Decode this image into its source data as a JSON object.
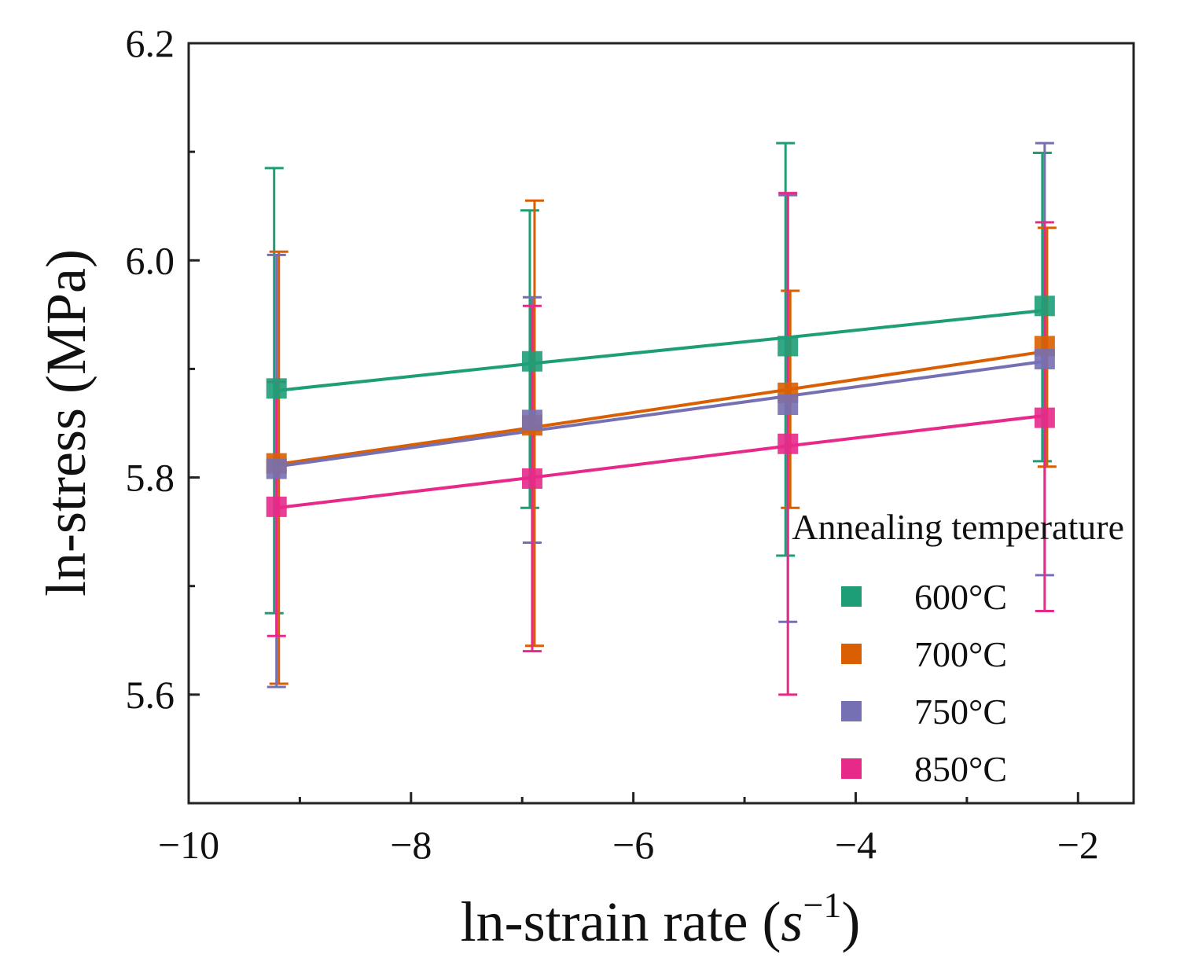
{
  "chart_data": {
    "type": "scatter",
    "title": "",
    "xlabel": {
      "main": "ln-strain rate (",
      "var": "s",
      "exp": "−1",
      "close": ")"
    },
    "ylabel": "ln-stress (MPa)",
    "xlim": [
      -10,
      -1.5
    ],
    "ylim": [
      5.5,
      6.2
    ],
    "xticks": [
      -10,
      -8,
      -6,
      -4,
      -2
    ],
    "xtick_labels": [
      "−10",
      "−8",
      "−6",
      "−4",
      "−2"
    ],
    "xminor": [
      -9,
      -7,
      -5,
      -3
    ],
    "yticks": [
      5.6,
      5.8,
      6.0,
      6.2
    ],
    "ytick_labels": [
      "5.6",
      "5.8",
      "6.0",
      "6.2"
    ],
    "yminor": [
      5.7,
      5.9,
      6.1
    ],
    "x": [
      -9.21,
      -6.91,
      -4.61,
      -2.3
    ],
    "legend": {
      "title": "Annealing temperature",
      "position": "bottom-right"
    },
    "series": [
      {
        "name": "600°C",
        "color": "#1e9e77",
        "values": [
          5.882,
          5.907,
          5.921,
          5.958
        ],
        "err_low": [
          5.675,
          5.772,
          5.728,
          5.815
        ],
        "err_high": [
          6.085,
          6.046,
          6.108,
          6.099
        ],
        "fit": [
          5.88,
          5.905,
          5.929,
          5.954
        ]
      },
      {
        "name": "700°C",
        "color": "#d95f02",
        "values": [
          5.813,
          5.848,
          5.878,
          5.921
        ],
        "err_low": [
          5.61,
          5.645,
          5.772,
          5.81
        ],
        "err_high": [
          6.008,
          6.055,
          5.972,
          6.03
        ],
        "fit": [
          5.812,
          5.846,
          5.881,
          5.916
        ]
      },
      {
        "name": "750°C",
        "color": "#7570b3",
        "values": [
          5.808,
          5.853,
          5.867,
          5.909
        ],
        "err_low": [
          5.607,
          5.74,
          5.667,
          5.71
        ],
        "err_high": [
          6.005,
          5.966,
          6.06,
          6.108
        ],
        "fit": [
          5.81,
          5.843,
          5.875,
          5.907
        ]
      },
      {
        "name": "850°C",
        "color": "#e7298a",
        "values": [
          5.773,
          5.799,
          5.831,
          5.855
        ],
        "err_low": [
          5.654,
          5.64,
          5.6,
          5.677
        ],
        "err_high": [
          5.888,
          5.958,
          6.062,
          6.035
        ],
        "fit": [
          5.772,
          5.8,
          5.829,
          5.857
        ]
      }
    ]
  }
}
